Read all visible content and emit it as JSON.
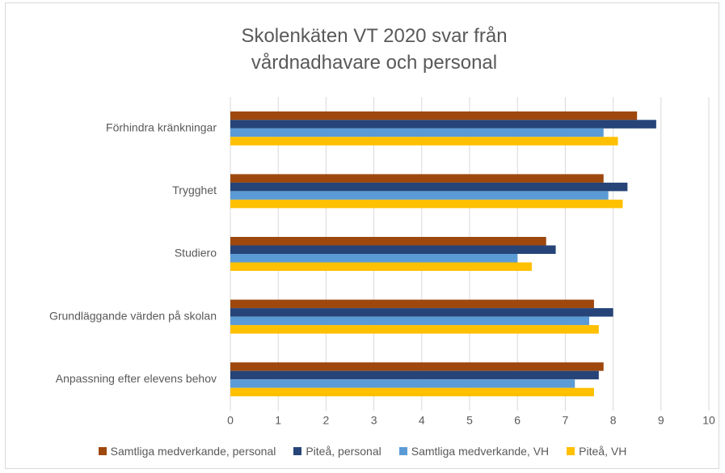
{
  "chart_data": {
    "type": "hbar",
    "title": "Skolenkäten VT 2020 svar från vårdnadhavare och personal",
    "categories": [
      "Förhindra kränkningar",
      "Trygghet",
      "Studiero",
      "Grundläggande värden på skolan",
      "Anpassning efter elevens behov"
    ],
    "series": [
      {
        "name": "Samtliga medverkande, personal",
        "color": "#9e480e",
        "values": [
          8.5,
          7.8,
          6.6,
          7.6,
          7.8
        ]
      },
      {
        "name": "Piteå, personal",
        "color": "#264478",
        "values": [
          8.9,
          8.3,
          6.8,
          8.0,
          7.7
        ]
      },
      {
        "name": "Samtliga medverkande, VH",
        "color": "#5b9bd5",
        "values": [
          7.8,
          7.9,
          6.0,
          7.5,
          7.2
        ]
      },
      {
        "name": "Piteå, VH",
        "color": "#ffc000",
        "values": [
          8.1,
          8.2,
          6.3,
          7.7,
          7.6
        ]
      }
    ],
    "xlim": [
      0,
      10
    ],
    "xticks": [
      0,
      1,
      2,
      3,
      4,
      5,
      6,
      7,
      8,
      9,
      10
    ],
    "grid": true,
    "legend": "bottom"
  }
}
